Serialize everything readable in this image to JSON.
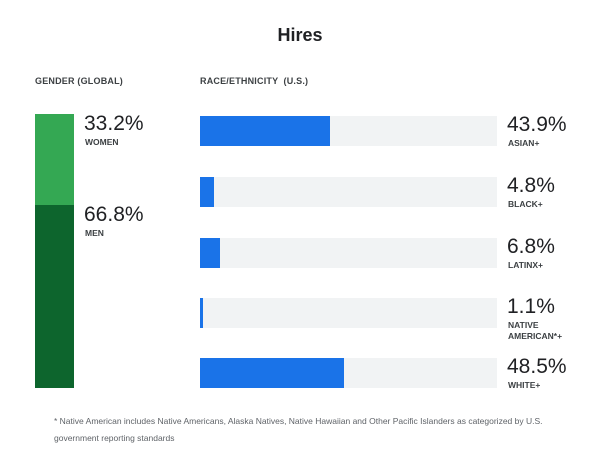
{
  "chart_data": [
    {
      "type": "bar",
      "stacked": true,
      "title": "Hires",
      "section_label": "GENDER (GLOBAL)",
      "categories": [
        "WOMEN",
        "MEN"
      ],
      "values": [
        33.2,
        66.8
      ],
      "value_labels": [
        "33.2%",
        "66.8%"
      ],
      "colors": [
        "#34a853",
        "#0d652d"
      ],
      "orientation": "vertical"
    },
    {
      "type": "bar",
      "section_label": "RACE/ETHNICITY  (U.S.)",
      "orientation": "horizontal",
      "categories": [
        "ASIAN+",
        "BLACK+",
        "LATINX+",
        "NATIVE AMERICAN*+",
        "WHITE+"
      ],
      "values": [
        43.9,
        4.8,
        6.8,
        1.1,
        48.5
      ],
      "value_labels": [
        "43.9%",
        "4.8%",
        "6.8%",
        "1.1%",
        "48.5%"
      ],
      "xlim": [
        0,
        100
      ],
      "bar_color": "#1a73e8",
      "track_color": "#f1f3f4"
    }
  ],
  "footnote": "* Native American includes Native Americans, Alaska Natives, Native Hawaiian and Other Pacific Islanders as categorized by U.S. government reporting standards"
}
